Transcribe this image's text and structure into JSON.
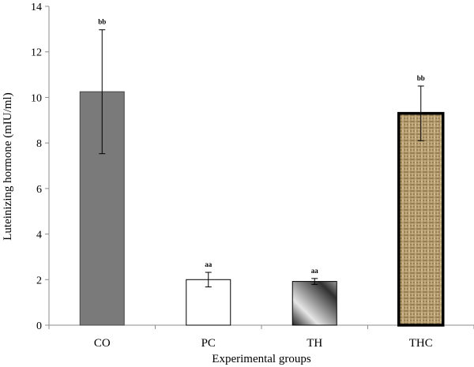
{
  "chart_data": {
    "type": "bar",
    "title": "",
    "xlabel": "Experimental groups",
    "ylabel": "Luteinizing hormone (mIU/ml)",
    "ylim": [
      0,
      14
    ],
    "yticks": [
      0,
      2,
      4,
      6,
      8,
      10,
      12,
      14
    ],
    "grid": false,
    "legend": "none",
    "categories": [
      "CO",
      "PC",
      "TH",
      "THC"
    ],
    "values": [
      10.25,
      2.0,
      1.92,
      9.3
    ],
    "errors": [
      2.72,
      0.32,
      0.13,
      1.2
    ],
    "significance": [
      "bb",
      "aa",
      "aa",
      "bb"
    ],
    "fills": [
      "solid-gray",
      "white",
      "gradient-gray",
      "burlap-texture"
    ],
    "colors": {
      "co_fill": "#7a7a7a",
      "pc_fill": "#ffffff",
      "th_dark": "#1e1e1e",
      "th_light": "#e8e8e8",
      "thc_base": "#b39a6b",
      "axis": "#8c8c8c"
    }
  }
}
